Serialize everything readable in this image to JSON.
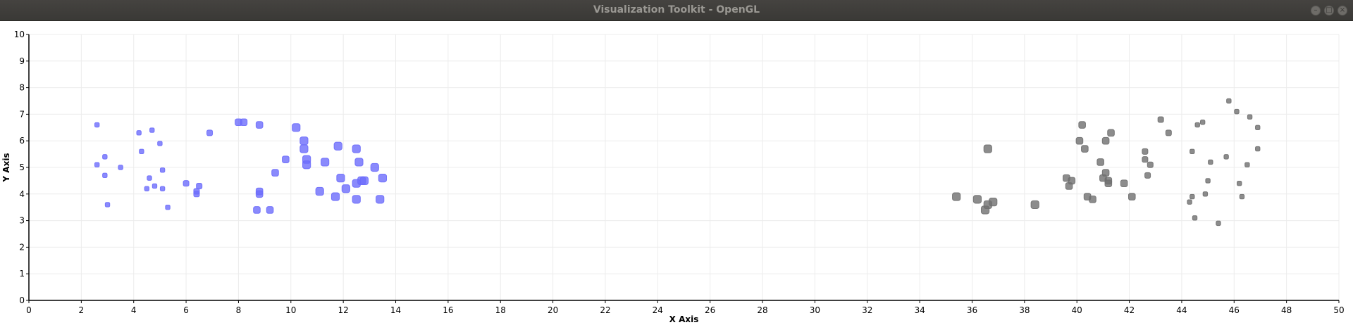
{
  "window": {
    "title": "Visualization Toolkit - OpenGL",
    "icons": [
      "minimize-icon",
      "maximize-icon",
      "close-icon"
    ]
  },
  "colors": {
    "series_blue": "#6d6dfb",
    "series_gray": "#6f6f6f",
    "grid": "#ececec",
    "axis": "#000000"
  },
  "chart_data": {
    "type": "scatter",
    "title": "",
    "xlabel": "X Axis",
    "ylabel": "Y Axis",
    "xlim": [
      0,
      50
    ],
    "ylim": [
      0,
      10
    ],
    "xticks": [
      0,
      2,
      4,
      6,
      8,
      10,
      12,
      14,
      16,
      18,
      20,
      22,
      24,
      26,
      28,
      30,
      32,
      34,
      36,
      38,
      40,
      42,
      44,
      46,
      48,
      50
    ],
    "yticks": [
      0,
      1,
      2,
      3,
      4,
      5,
      6,
      7,
      8,
      9,
      10
    ],
    "grid": true,
    "series": [
      {
        "color": "#6d6dfb",
        "points": [
          [
            2.6,
            6.6,
            2
          ],
          [
            2.6,
            5.1,
            2
          ],
          [
            2.9,
            5.4,
            2
          ],
          [
            2.9,
            4.7,
            2
          ],
          [
            3.0,
            3.6,
            2
          ],
          [
            3.5,
            5.0,
            2
          ],
          [
            4.2,
            6.3,
            2
          ],
          [
            4.3,
            5.6,
            2
          ],
          [
            4.5,
            4.2,
            2
          ],
          [
            4.6,
            4.6,
            2
          ],
          [
            4.7,
            6.4,
            2
          ],
          [
            4.8,
            4.3,
            2
          ],
          [
            5.0,
            5.9,
            2
          ],
          [
            5.1,
            4.9,
            2
          ],
          [
            5.1,
            4.2,
            2
          ],
          [
            5.3,
            3.5,
            2
          ],
          [
            6.0,
            4.4,
            2.5
          ],
          [
            6.4,
            4.0,
            2.5
          ],
          [
            6.4,
            4.1,
            2.5
          ],
          [
            6.5,
            4.3,
            2.5
          ],
          [
            6.9,
            6.3,
            2.5
          ],
          [
            8.0,
            6.7,
            3
          ],
          [
            8.2,
            6.7,
            3
          ],
          [
            8.8,
            6.6,
            3
          ],
          [
            8.8,
            4.1,
            3
          ],
          [
            8.8,
            4.0,
            3
          ],
          [
            8.7,
            3.4,
            3
          ],
          [
            9.2,
            3.4,
            3
          ],
          [
            9.4,
            4.8,
            3
          ],
          [
            9.8,
            5.3,
            3
          ],
          [
            10.2,
            6.5,
            3.5
          ],
          [
            10.5,
            6.0,
            3.5
          ],
          [
            10.5,
            5.7,
            3.5
          ],
          [
            10.6,
            5.3,
            3.5
          ],
          [
            10.6,
            5.1,
            3.5
          ],
          [
            11.1,
            4.1,
            3.5
          ],
          [
            11.3,
            5.2,
            3.5
          ],
          [
            11.7,
            3.9,
            3.5
          ],
          [
            11.8,
            5.8,
            3.5
          ],
          [
            11.9,
            4.6,
            3.5
          ],
          [
            12.1,
            4.2,
            3.5
          ],
          [
            12.5,
            5.7,
            3.5
          ],
          [
            12.5,
            4.4,
            3.5
          ],
          [
            12.5,
            3.8,
            3.5
          ],
          [
            12.6,
            5.2,
            3.5
          ],
          [
            12.7,
            4.5,
            3.5
          ],
          [
            12.8,
            4.5,
            3.5
          ],
          [
            13.2,
            5.0,
            3.5
          ],
          [
            13.4,
            3.8,
            3.5
          ],
          [
            13.5,
            4.6,
            3.5
          ]
        ]
      },
      {
        "color": "#6f6f6f",
        "points": [
          [
            35.4,
            3.9,
            3.5
          ],
          [
            36.2,
            3.8,
            3.5
          ],
          [
            36.5,
            3.4,
            3.5
          ],
          [
            36.6,
            5.7,
            3.5
          ],
          [
            36.6,
            3.6,
            3.5
          ],
          [
            36.8,
            3.7,
            3.5
          ],
          [
            38.4,
            3.6,
            3.5
          ],
          [
            39.6,
            4.6,
            3
          ],
          [
            39.7,
            4.3,
            3
          ],
          [
            39.8,
            4.5,
            3
          ],
          [
            40.1,
            6.0,
            3
          ],
          [
            40.2,
            6.6,
            3
          ],
          [
            40.3,
            5.7,
            3
          ],
          [
            40.4,
            3.9,
            3
          ],
          [
            40.6,
            3.8,
            3
          ],
          [
            40.9,
            5.2,
            3
          ],
          [
            41.0,
            4.6,
            3
          ],
          [
            41.1,
            4.8,
            3
          ],
          [
            41.1,
            6.0,
            3
          ],
          [
            41.2,
            4.5,
            3
          ],
          [
            41.2,
            4.4,
            3
          ],
          [
            41.3,
            6.3,
            3
          ],
          [
            41.8,
            4.4,
            3
          ],
          [
            42.1,
            3.9,
            3
          ],
          [
            42.6,
            5.6,
            2.5
          ],
          [
            42.6,
            5.3,
            2.5
          ],
          [
            42.7,
            4.7,
            2.5
          ],
          [
            42.8,
            5.1,
            2.5
          ],
          [
            43.2,
            6.8,
            2.5
          ],
          [
            43.5,
            6.3,
            2.5
          ],
          [
            44.3,
            3.7,
            2
          ],
          [
            44.4,
            3.9,
            2
          ],
          [
            44.4,
            5.6,
            2
          ],
          [
            44.5,
            3.1,
            2
          ],
          [
            44.6,
            6.6,
            2
          ],
          [
            44.8,
            6.7,
            2
          ],
          [
            44.9,
            4.0,
            2
          ],
          [
            45.0,
            4.5,
            2
          ],
          [
            45.1,
            5.2,
            2
          ],
          [
            45.4,
            2.9,
            2
          ],
          [
            45.7,
            5.4,
            2
          ],
          [
            45.8,
            7.5,
            2
          ],
          [
            46.1,
            7.1,
            2
          ],
          [
            46.2,
            4.4,
            2
          ],
          [
            46.3,
            3.9,
            2
          ],
          [
            46.5,
            5.1,
            2
          ],
          [
            46.6,
            6.9,
            2
          ],
          [
            46.9,
            6.5,
            2
          ],
          [
            46.9,
            5.7,
            2
          ]
        ]
      }
    ]
  }
}
